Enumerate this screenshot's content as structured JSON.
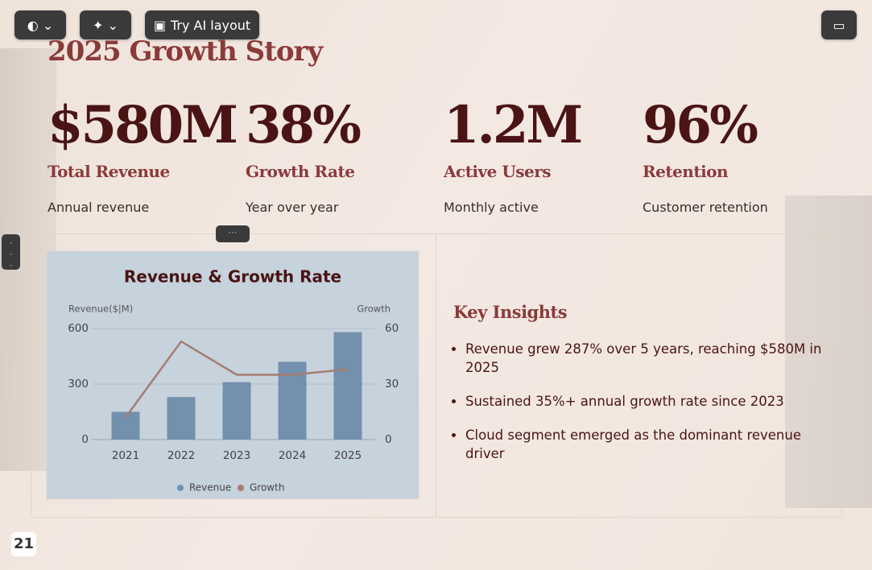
{
  "toolbar": {
    "ai_layout": "Try AI layout"
  },
  "slide": {
    "title": "2025 Growth Story",
    "stats": [
      {
        "value": "$580M",
        "label": "Total Revenue",
        "caption": "Annual revenue"
      },
      {
        "value": "38%",
        "label": "Growth Rate",
        "caption": "Year over year"
      },
      {
        "value": "1.2M",
        "label": "Active Users",
        "caption": "Monthly active"
      },
      {
        "value": "96%",
        "label": "Retention",
        "caption": "Customer retention"
      }
    ],
    "insights": {
      "title": "Key Insights",
      "items": [
        "Revenue grew 287% over 5 years, reaching $580M in 2025",
        "Sustained 35%+ annual growth rate since 2023",
        "Cloud segment emerged as the dominant revenue driver"
      ]
    },
    "page_number": "21"
  },
  "chart_data": {
    "type": "bar",
    "title": "Revenue & Growth Rate",
    "y_label": "Revenue($|M)",
    "y2_label": "Growth",
    "categories": [
      "2021",
      "2022",
      "2023",
      "2024",
      "2025"
    ],
    "series": [
      {
        "name": "Revenue",
        "type": "bar",
        "color": "#7390ad",
        "values": [
          150,
          230,
          310,
          420,
          580
        ]
      },
      {
        "name": "Growth",
        "type": "line",
        "axis": "y2",
        "color": "#a47d73",
        "values": [
          12,
          53,
          35,
          35,
          38
        ]
      }
    ],
    "ylim": [
      0,
      600
    ],
    "yticks": [
      0,
      300,
      600
    ],
    "y2lim": [
      0,
      60
    ],
    "y2ticks": [
      0,
      30,
      60
    ],
    "grid": true,
    "legend": "bottom"
  }
}
